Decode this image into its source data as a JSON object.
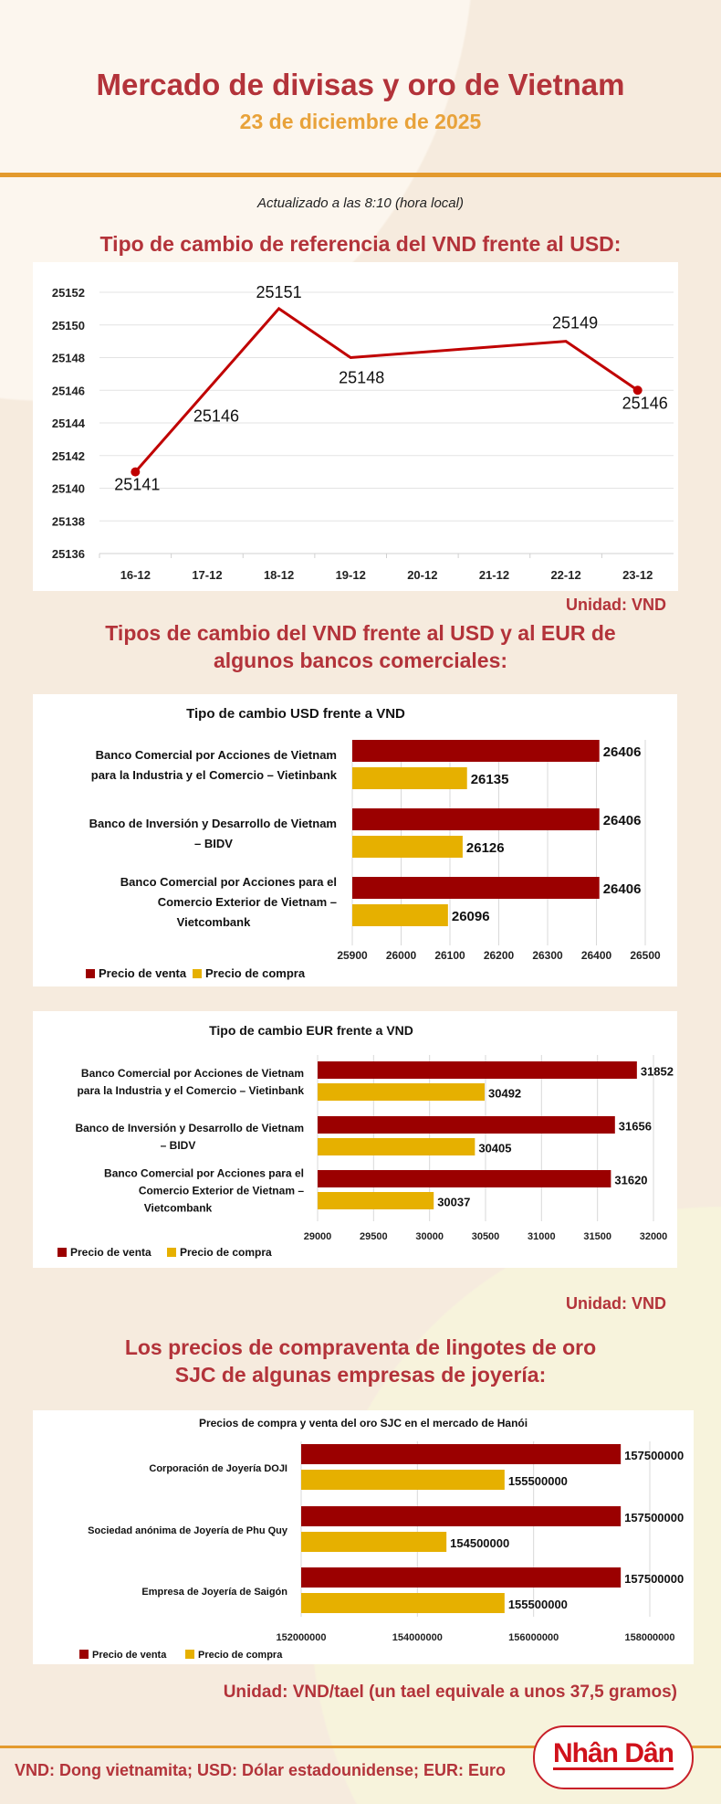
{
  "header": {
    "title": "Mercado de divisas y oro de Vietnam",
    "date": "23 de diciembre de 2025",
    "updated": "Actualizado a las 8:10 (hora local)"
  },
  "sections": {
    "reference_title": "Tipo de cambio de referencia del VND frente al USD:",
    "reference_unit": "Unidad: VND",
    "banks_title_line1": "Tipos de cambio del VND frente al USD y al EUR de",
    "banks_title_line2": "algunos bancos comerciales:",
    "banks_unit": "Unidad: VND",
    "gold_title_line1": "Los precios de compraventa de lingotes de oro",
    "gold_title_line2": "SJC de algunas empresas de joyería:",
    "gold_unit": "Unidad: VND/tael (un tael equivale a unos 37,5 gramos)"
  },
  "footer": {
    "glossary": "VND: Dong vietnamita; USD: Dólar estadounidense; EUR: Euro",
    "logo": "Nhân Dân"
  },
  "colors": {
    "title": "#b3333a",
    "date": "#e8a23a",
    "sell": "#9b0000",
    "buy": "#e6b000",
    "line": "#c00000"
  },
  "chart_data": [
    {
      "type": "line",
      "title": "",
      "categories": [
        "16-12",
        "17-12",
        "18-12",
        "19-12",
        "20-12",
        "21-12",
        "22-12",
        "23-12"
      ],
      "values": [
        25141,
        25146,
        25151,
        25148,
        null,
        null,
        25149,
        25146
      ],
      "labels": [
        "25141",
        "25146",
        "25151",
        "25148",
        "",
        "",
        "25149",
        "25146"
      ],
      "yticks": [
        "25136",
        "25138",
        "25140",
        "25142",
        "25144",
        "25146",
        "25148",
        "25150",
        "25152"
      ],
      "ylim": [
        25136,
        25152
      ],
      "grid": true
    },
    {
      "type": "bar",
      "title": "Tipo de cambio USD frente a VND",
      "categories": [
        "Banco Comercial por Acciones de Vietnam|para la Industria y el Comercio – Vietinbank",
        "Banco de Inversión y Desarrollo de Vietnam|– BIDV",
        "Banco Comercial por Acciones para el|Comercio Exterior de Vietnam –|Vietcombank"
      ],
      "series": [
        {
          "name": "Precio de venta",
          "values": [
            26406,
            26406,
            26406
          ]
        },
        {
          "name": "Precio de compra",
          "values": [
            26135,
            26126,
            26096
          ]
        }
      ],
      "xticks": [
        "25900",
        "26000",
        "26100",
        "26200",
        "26300",
        "26400",
        "26500"
      ],
      "xlim": [
        25900,
        26500
      ],
      "legend": "bottom-left"
    },
    {
      "type": "bar",
      "title": "Tipo de cambio EUR frente a VND",
      "categories": [
        "Banco Comercial por Acciones de Vietnam|para la Industria y el Comercio – Vietinbank",
        "Banco de Inversión y Desarrollo de Vietnam|– BIDV",
        "Banco Comercial por Acciones para el|Comercio Exterior de Vietnam –|Vietcombank"
      ],
      "series": [
        {
          "name": "Precio de venta",
          "values": [
            31852,
            31656,
            31620
          ]
        },
        {
          "name": "Precio de compra",
          "values": [
            30492,
            30405,
            30037
          ]
        }
      ],
      "xticks": [
        "29000",
        "29500",
        "30000",
        "30500",
        "31000",
        "31500",
        "32000"
      ],
      "xlim": [
        29000,
        32000
      ],
      "legend": "bottom-left"
    },
    {
      "type": "bar",
      "title": "Precios de compra y venta del oro SJC en el mercado de Hanói",
      "categories": [
        "Corporación de Joyería DOJI",
        "Sociedad anónima de Joyería de Phu Quy",
        "Empresa de Joyería de Saigón"
      ],
      "series": [
        {
          "name": "Precio de venta",
          "values": [
            157500000,
            157500000,
            157500000
          ]
        },
        {
          "name": "Precio de compra",
          "values": [
            155500000,
            154500000,
            155500000
          ]
        }
      ],
      "xticks": [
        "152000000",
        "154000000",
        "156000000",
        "158000000"
      ],
      "xlim": [
        152000000,
        158000000
      ],
      "legend": "bottom-left"
    }
  ]
}
